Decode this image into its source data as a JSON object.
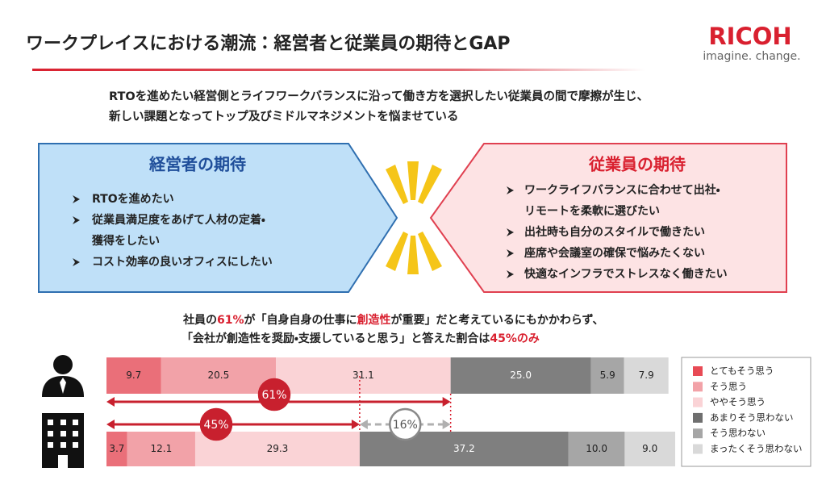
{
  "header": {
    "title": "ワークプレイスにおける潮流：経営者と従業員の期待とGAP",
    "logo": "RICOH",
    "tagline": "imagine. change."
  },
  "intro": [
    "RTOを進めたい経営側とライフワークバランスに沿って働き方を選択したい従業員の間で摩擦が生じ、",
    "新しい課題となってトップ及びミドルマネジメントを悩ませている"
  ],
  "panels": [
    {
      "title": "経営者の期待",
      "bullets": [
        [
          "RTOを進めたい"
        ],
        [
          "従業員満足度をあげて人材の定着・",
          "獲得をしたい"
        ],
        [
          "コスト効率の良いオフィスにしたい"
        ]
      ]
    },
    {
      "title": "従業員の期待",
      "bullets": [
        [
          "ワークライフバランスに合わせて出社・",
          "リモートを柔軟に選びたい"
        ],
        [
          "出社時も自分のスタイルで働きたい"
        ],
        [
          "座席や会議室の確保で悩みたくない"
        ],
        [
          "快適なインフラでストレスなく働きたい"
        ]
      ]
    }
  ],
  "finding": [
    [
      {
        "text": "社員の",
        "emphasis": false
      },
      {
        "text": "61%",
        "emphasis": true
      },
      {
        "text": "が「自身自身の仕事に",
        "emphasis": false
      },
      {
        "text": "創造性",
        "emphasis": true
      },
      {
        "text": "が重要」だと考えているにもかかわらず、",
        "emphasis": false
      }
    ],
    [
      {
        "text": "「会社が創造性を奨励・支援していると思う」と答えた割合は",
        "emphasis": false
      },
      {
        "text": "45%のみ",
        "emphasis": true
      }
    ]
  ],
  "chart_data": {
    "type": "bar",
    "orientation": "horizontal",
    "stacked": true,
    "categories": [
      null,
      null
    ],
    "xlim": [
      0,
      100
    ],
    "legend": "right",
    "series": [
      {
        "name": "とてもそう思う",
        "color": "#ea6f79",
        "legend_color": "#e84a55",
        "values": [
          9.7,
          3.7
        ],
        "value_labels": [
          "9.7",
          "3.7"
        ]
      },
      {
        "name": "そう思う",
        "color": "#f2a2a8",
        "legend_color": "#f2a2a8",
        "values": [
          20.5,
          12.1
        ],
        "value_labels": [
          "20.5",
          "12.1"
        ]
      },
      {
        "name": "ややそう思う",
        "color": "#fad3d6",
        "legend_color": "#fad3d6",
        "values": [
          31.1,
          29.3
        ],
        "value_labels": [
          "31.1",
          "29.3"
        ]
      },
      {
        "name": "あまりそう思わない",
        "color": "#7f7f7f",
        "legend_color": "#6f6f6f",
        "values": [
          25.0,
          37.2
        ],
        "value_labels": [
          "25.0",
          "37.2"
        ]
      },
      {
        "name": "そう思わない",
        "color": "#a6a6a6",
        "legend_color": "#a6a6a6",
        "values": [
          5.9,
          10.0
        ],
        "value_labels": [
          "5.9",
          "10.0"
        ]
      },
      {
        "name": "まったくそう思わない",
        "color": "#d9d9d9",
        "legend_color": "#d9d9d9",
        "values": [
          7.9,
          9.0
        ],
        "value_labels": [
          "7.9",
          "9.0"
        ]
      }
    ],
    "annotations": [
      "61%",
      "45%",
      "16%"
    ]
  }
}
